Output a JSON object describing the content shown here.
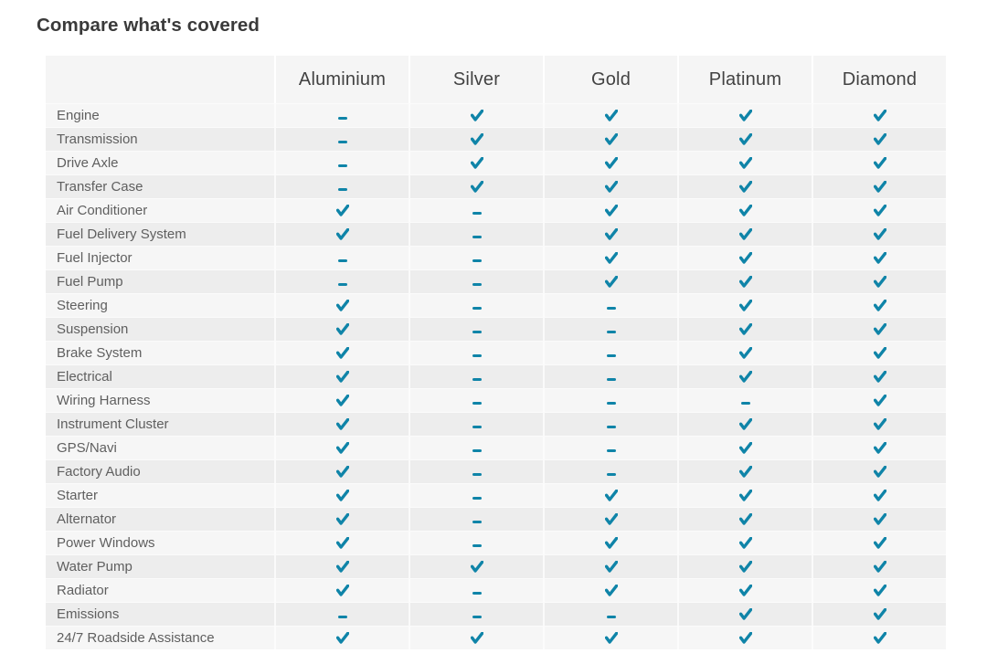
{
  "page": {
    "title": "Compare what's covered"
  },
  "table": {
    "plan_headers": [
      "Aluminium",
      "Silver",
      "Gold",
      "Platinum",
      "Diamond"
    ],
    "rows": [
      {
        "label": "Engine",
        "coverage": [
          "dash",
          "check",
          "check",
          "check",
          "check"
        ]
      },
      {
        "label": "Transmission",
        "coverage": [
          "dash",
          "check",
          "check",
          "check",
          "check"
        ]
      },
      {
        "label": "Drive Axle",
        "coverage": [
          "dash",
          "check",
          "check",
          "check",
          "check"
        ]
      },
      {
        "label": "Transfer Case",
        "coverage": [
          "dash",
          "check",
          "check",
          "check",
          "check"
        ]
      },
      {
        "label": "Air Conditioner",
        "coverage": [
          "check",
          "dash",
          "check",
          "check",
          "check"
        ]
      },
      {
        "label": "Fuel Delivery System",
        "coverage": [
          "check",
          "dash",
          "check",
          "check",
          "check"
        ]
      },
      {
        "label": "Fuel Injector",
        "coverage": [
          "dash",
          "dash",
          "check",
          "check",
          "check"
        ]
      },
      {
        "label": "Fuel Pump",
        "coverage": [
          "dash",
          "dash",
          "check",
          "check",
          "check"
        ]
      },
      {
        "label": "Steering",
        "coverage": [
          "check",
          "dash",
          "dash",
          "check",
          "check"
        ]
      },
      {
        "label": "Suspension",
        "coverage": [
          "check",
          "dash",
          "dash",
          "check",
          "check"
        ]
      },
      {
        "label": "Brake System",
        "coverage": [
          "check",
          "dash",
          "dash",
          "check",
          "check"
        ]
      },
      {
        "label": "Electrical",
        "coverage": [
          "check",
          "dash",
          "dash",
          "check",
          "check"
        ]
      },
      {
        "label": "Wiring Harness",
        "coverage": [
          "check",
          "dash",
          "dash",
          "dash",
          "check"
        ]
      },
      {
        "label": "Instrument Cluster",
        "coverage": [
          "check",
          "dash",
          "dash",
          "check",
          "check"
        ]
      },
      {
        "label": "GPS/Navi",
        "coverage": [
          "check",
          "dash",
          "dash",
          "check",
          "check"
        ]
      },
      {
        "label": "Factory Audio",
        "coverage": [
          "check",
          "dash",
          "dash",
          "check",
          "check"
        ]
      },
      {
        "label": "Starter",
        "coverage": [
          "check",
          "dash",
          "check",
          "check",
          "check"
        ]
      },
      {
        "label": "Alternator",
        "coverage": [
          "check",
          "dash",
          "check",
          "check",
          "check"
        ]
      },
      {
        "label": "Power Windows",
        "coverage": [
          "check",
          "dash",
          "check",
          "check",
          "check"
        ]
      },
      {
        "label": "Water Pump",
        "coverage": [
          "check",
          "check",
          "check",
          "check",
          "check"
        ]
      },
      {
        "label": "Radiator",
        "coverage": [
          "check",
          "dash",
          "check",
          "check",
          "check"
        ]
      },
      {
        "label": "Emissions",
        "coverage": [
          "dash",
          "dash",
          "dash",
          "check",
          "check"
        ]
      },
      {
        "label": "24/7 Roadside Assistance",
        "coverage": [
          "check",
          "check",
          "check",
          "check",
          "check"
        ]
      }
    ]
  },
  "icons": {
    "covered": "check-icon",
    "not_covered": "dash-icon"
  },
  "colors": {
    "accent": "#0f84a8",
    "row_light": "#f6f6f6",
    "row_dark": "#ededed",
    "header_bg": "#f5f5f5",
    "title_text": "#3a3a3a",
    "header_text": "#424242",
    "label_text": "#5f5f5f"
  }
}
